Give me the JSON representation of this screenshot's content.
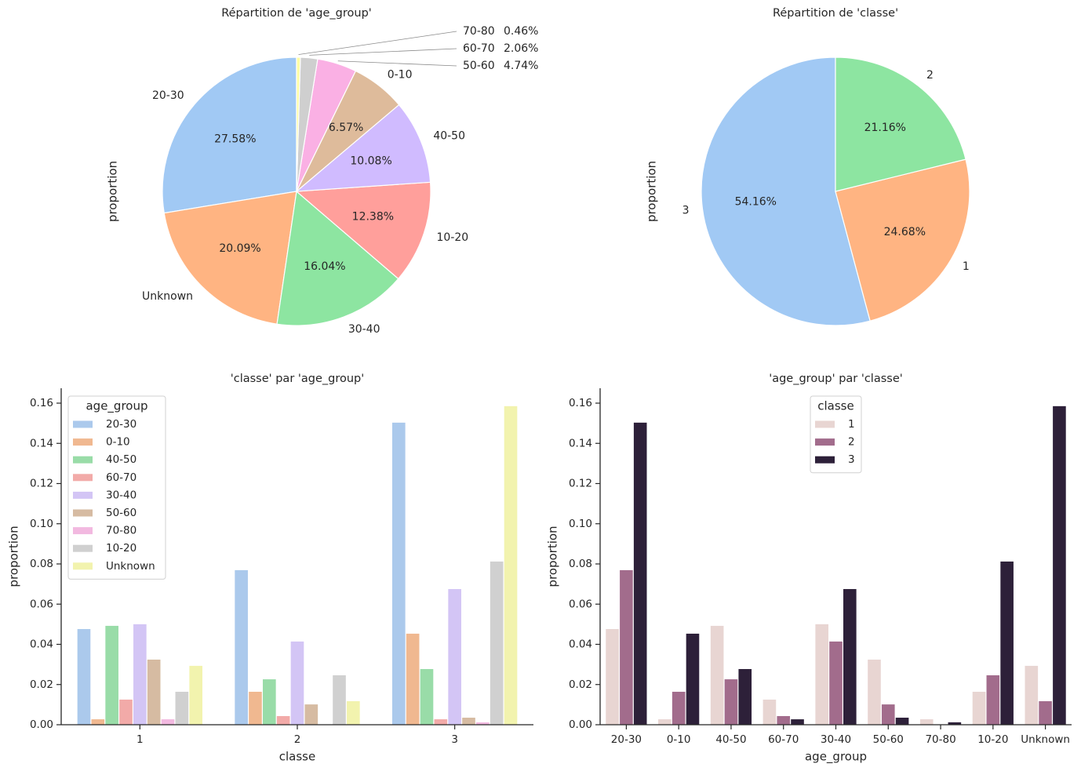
{
  "chart_data": [
    {
      "type": "pie",
      "title": "Répartition de 'age_group'",
      "ylabel": "proportion",
      "labels": [
        "20-30",
        "Unknown",
        "30-40",
        "10-20",
        "40-50",
        "0-10",
        "50-60",
        "60-70",
        "70-80"
      ],
      "values": [
        27.58,
        20.09,
        16.04,
        12.38,
        10.08,
        6.57,
        4.74,
        2.06,
        0.46
      ],
      "pct_labels": [
        "27.58%",
        "20.09%",
        "16.04%",
        "12.38%",
        "10.08%",
        "6.57%",
        "4.74%",
        "2.06%",
        "0.46%"
      ],
      "colors": [
        "#a1c9f4",
        "#ffb482",
        "#8de5a1",
        "#ff9f9b",
        "#d0bbff",
        "#debb9b",
        "#fab0e4",
        "#cfcfcf",
        "#fffea3"
      ]
    },
    {
      "type": "pie",
      "title": "Répartition de 'classe'",
      "ylabel": "proportion",
      "labels": [
        "3",
        "1",
        "2"
      ],
      "values": [
        54.16,
        24.68,
        21.16
      ],
      "pct_labels": [
        "54.16%",
        "24.68%",
        "21.16%"
      ],
      "colors": [
        "#a1c9f4",
        "#ffb482",
        "#8de5a1"
      ]
    },
    {
      "type": "bar",
      "title": "'classe' par 'age_group'",
      "xlabel": "classe",
      "ylabel": "proportion",
      "categories": [
        "1",
        "2",
        "3"
      ],
      "legend_title": "age_group",
      "legend_position": "upper-left",
      "ylim": [
        0,
        0.168
      ],
      "yticks": [
        "0.00",
        "0.02",
        "0.04",
        "0.06",
        "0.08",
        "0.10",
        "0.12",
        "0.14",
        "0.16"
      ],
      "series": [
        {
          "name": "20-30",
          "color": "#abc9ec",
          "values": [
            0.0476,
            0.0769,
            0.1503
          ]
        },
        {
          "name": "0-10",
          "color": "#f0b890",
          "values": [
            0.0027,
            0.0164,
            0.0453
          ]
        },
        {
          "name": "40-50",
          "color": "#99dca8",
          "values": [
            0.0492,
            0.0226,
            0.0277
          ]
        },
        {
          "name": "60-70",
          "color": "#f2aaa8",
          "values": [
            0.0125,
            0.0043,
            0.0027
          ]
        },
        {
          "name": "30-40",
          "color": "#d3c5f5",
          "values": [
            0.05,
            0.0414,
            0.0675
          ]
        },
        {
          "name": "50-60",
          "color": "#d6bba2",
          "values": [
            0.0324,
            0.0101,
            0.0035
          ]
        },
        {
          "name": "70-80",
          "color": "#f2b9e0",
          "values": [
            0.0027,
            0,
            0.0012
          ]
        },
        {
          "name": "10-20",
          "color": "#d0d0d0",
          "values": [
            0.0164,
            0.0246,
            0.0812
          ]
        },
        {
          "name": "Unknown",
          "color": "#f2f3ae",
          "values": [
            0.0293,
            0.0117,
            0.1585
          ]
        }
      ]
    },
    {
      "type": "bar",
      "title": "'age_group' par 'classe'",
      "xlabel": "age_group",
      "ylabel": "proportion",
      "categories": [
        "20-30",
        "0-10",
        "40-50",
        "60-70",
        "30-40",
        "50-60",
        "70-80",
        "10-20",
        "Unknown"
      ],
      "legend_title": "classe",
      "legend_position": "upper-center",
      "ylim": [
        0,
        0.168
      ],
      "yticks": [
        "0.00",
        "0.02",
        "0.04",
        "0.06",
        "0.08",
        "0.10",
        "0.12",
        "0.14",
        "0.16"
      ],
      "series": [
        {
          "name": "1",
          "color": "#e8d5d2",
          "values": [
            0.0476,
            0.0027,
            0.0492,
            0.0125,
            0.05,
            0.0324,
            0.0027,
            0.0164,
            0.0293
          ]
        },
        {
          "name": "2",
          "color": "#a26c8c",
          "values": [
            0.0769,
            0.0164,
            0.0226,
            0.0043,
            0.0414,
            0.0101,
            0,
            0.0246,
            0.0117
          ]
        },
        {
          "name": "3",
          "color": "#2d2039",
          "values": [
            0.1503,
            0.0453,
            0.0277,
            0.0027,
            0.0675,
            0.0035,
            0.0012,
            0.0812,
            0.1585
          ]
        }
      ]
    }
  ]
}
